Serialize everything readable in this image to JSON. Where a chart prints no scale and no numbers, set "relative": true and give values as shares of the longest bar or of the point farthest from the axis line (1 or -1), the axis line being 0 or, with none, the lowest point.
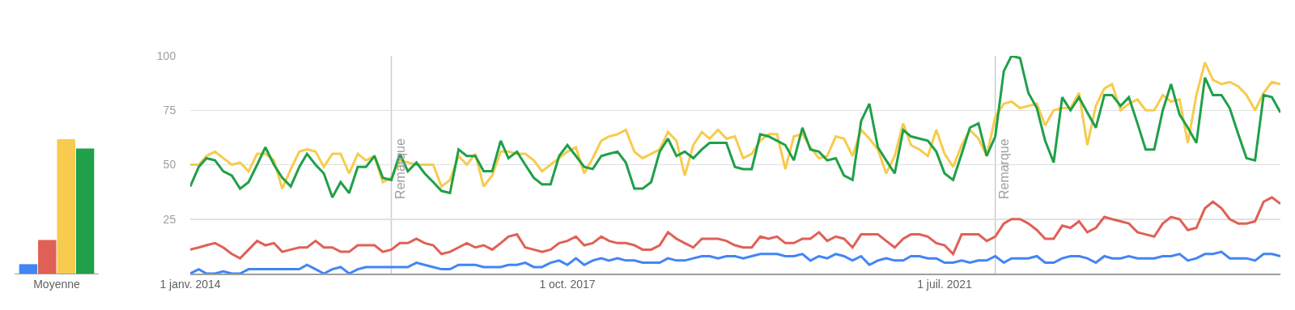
{
  "chart_data": [
    {
      "type": "bar",
      "relative": true,
      "categories": [
        "Moyenne"
      ],
      "series": [
        {
          "color": "#4285f4",
          "values": [
            0.07
          ]
        },
        {
          "color": "#e06055",
          "values": [
            0.25
          ]
        },
        {
          "color": "#f7cb4d",
          "values": [
            1
          ]
        },
        {
          "color": "#1fa049",
          "values": [
            0.93
          ]
        }
      ]
    },
    {
      "type": "line",
      "grid": "y",
      "xlim": [
        "2014-01-01",
        "2024-11-01"
      ],
      "ylim": [
        0,
        100
      ],
      "yticks": [
        25,
        50,
        75,
        100
      ],
      "xticks": [
        {
          "value": "2014-01-01",
          "label": "1 janv. 2014"
        },
        {
          "value": "2017-10-01",
          "label": "1 oct. 2017"
        },
        {
          "value": "2021-07-01",
          "label": "1 juil. 2021"
        }
      ],
      "ref_lines": [
        {
          "axis": "x",
          "value": "2016-01",
          "label": "Remarque",
          "color": "#cccccc"
        },
        {
          "axis": "x",
          "value": "2022-01",
          "label": "Remarque",
          "color": "#cccccc"
        }
      ],
      "x": [
        "2014-01",
        "2014-02",
        "2014-03",
        "2014-04",
        "2014-05",
        "2014-06",
        "2014-07",
        "2014-08",
        "2014-09",
        "2014-10",
        "2014-11",
        "2014-12",
        "2015-01",
        "2015-02",
        "2015-03",
        "2015-04",
        "2015-05",
        "2015-06",
        "2015-07",
        "2015-08",
        "2015-09",
        "2015-10",
        "2015-11",
        "2015-12",
        "2016-01",
        "2016-02",
        "2016-03",
        "2016-04",
        "2016-05",
        "2016-06",
        "2016-07",
        "2016-08",
        "2016-09",
        "2016-10",
        "2016-11",
        "2016-12",
        "2017-01",
        "2017-02",
        "2017-03",
        "2017-04",
        "2017-05",
        "2017-06",
        "2017-07",
        "2017-08",
        "2017-09",
        "2017-10",
        "2017-11",
        "2017-12",
        "2018-01",
        "2018-02",
        "2018-03",
        "2018-04",
        "2018-05",
        "2018-06",
        "2018-07",
        "2018-08",
        "2018-09",
        "2018-10",
        "2018-11",
        "2018-12",
        "2019-01",
        "2019-02",
        "2019-03",
        "2019-04",
        "2019-05",
        "2019-06",
        "2019-07",
        "2019-08",
        "2019-09",
        "2019-10",
        "2019-11",
        "2019-12",
        "2020-01",
        "2020-02",
        "2020-03",
        "2020-04",
        "2020-05",
        "2020-06",
        "2020-07",
        "2020-08",
        "2020-09",
        "2020-10",
        "2020-11",
        "2020-12",
        "2021-01",
        "2021-02",
        "2021-03",
        "2021-04",
        "2021-05",
        "2021-06",
        "2021-07",
        "2021-08",
        "2021-09",
        "2021-10",
        "2021-11",
        "2021-12",
        "2022-01",
        "2022-02",
        "2022-03",
        "2022-04",
        "2022-05",
        "2022-06",
        "2022-07",
        "2022-08",
        "2022-09",
        "2022-10",
        "2022-11",
        "2022-12",
        "2023-01",
        "2023-02",
        "2023-03",
        "2023-04",
        "2023-05",
        "2023-06",
        "2023-07",
        "2023-08",
        "2023-09",
        "2023-10",
        "2023-11",
        "2023-12",
        "2024-01",
        "2024-02",
        "2024-03",
        "2024-04",
        "2024-05",
        "2024-06",
        "2024-07",
        "2024-08",
        "2024-09",
        "2024-10",
        "2024-11"
      ],
      "series": [
        {
          "color": "#4285f4",
          "values": [
            0,
            2,
            0,
            0,
            1,
            0,
            0,
            2,
            2,
            2,
            2,
            2,
            2,
            2,
            4,
            2,
            0,
            2,
            3,
            0,
            2,
            3,
            3,
            3,
            3,
            3,
            3,
            5,
            4,
            3,
            2,
            2,
            4,
            4,
            4,
            3,
            3,
            3,
            4,
            4,
            5,
            3,
            3,
            5,
            6,
            4,
            7,
            4,
            6,
            7,
            6,
            7,
            6,
            6,
            5,
            5,
            5,
            7,
            6,
            6,
            7,
            8,
            8,
            7,
            8,
            8,
            7,
            8,
            9,
            9,
            9,
            8,
            8,
            9,
            6,
            8,
            7,
            9,
            8,
            6,
            8,
            4,
            6,
            7,
            6,
            6,
            8,
            8,
            7,
            7,
            5,
            5,
            6,
            5,
            6,
            6,
            8,
            5,
            7,
            7,
            7,
            8,
            5,
            5,
            7,
            8,
            8,
            7,
            5,
            8,
            7,
            7,
            8,
            7,
            7,
            7,
            8,
            8,
            9,
            6,
            7,
            9,
            9,
            10,
            7,
            7,
            7,
            6,
            9,
            9,
            8
          ]
        },
        {
          "color": "#e06055",
          "values": [
            11,
            12,
            13,
            14,
            12,
            9,
            7,
            11,
            15,
            13,
            14,
            10,
            11,
            12,
            12,
            15,
            12,
            12,
            10,
            10,
            13,
            13,
            13,
            10,
            11,
            14,
            14,
            16,
            14,
            13,
            9,
            10,
            12,
            14,
            12,
            13,
            11,
            14,
            17,
            18,
            12,
            11,
            10,
            11,
            14,
            15,
            17,
            13,
            14,
            17,
            15,
            14,
            14,
            13,
            11,
            11,
            13,
            19,
            16,
            14,
            12,
            16,
            16,
            16,
            15,
            13,
            12,
            12,
            17,
            16,
            17,
            14,
            14,
            16,
            16,
            19,
            15,
            17,
            16,
            12,
            18,
            18,
            18,
            15,
            12,
            16,
            18,
            18,
            17,
            14,
            13,
            9,
            18,
            18,
            18,
            15,
            17,
            23,
            25,
            25,
            23,
            20,
            16,
            16,
            22,
            21,
            24,
            19,
            21,
            26,
            25,
            24,
            23,
            19,
            18,
            17,
            23,
            26,
            25,
            20,
            21,
            30,
            33,
            30,
            25,
            23,
            23,
            24,
            33,
            35,
            32
          ]
        },
        {
          "color": "#f7cb4d",
          "values": [
            50,
            50,
            54,
            56,
            53,
            50,
            51,
            47,
            55,
            55,
            52,
            39,
            48,
            56,
            57,
            56,
            49,
            55,
            55,
            46,
            55,
            52,
            54,
            42,
            44,
            52,
            51,
            50,
            50,
            50,
            40,
            43,
            54,
            50,
            55,
            40,
            45,
            56,
            56,
            55,
            55,
            52,
            47,
            50,
            53,
            56,
            58,
            46,
            53,
            61,
            63,
            64,
            66,
            56,
            53,
            55,
            57,
            65,
            61,
            45,
            59,
            65,
            62,
            66,
            62,
            63,
            53,
            55,
            61,
            64,
            64,
            48,
            63,
            64,
            58,
            53,
            54,
            63,
            62,
            54,
            66,
            62,
            57,
            46,
            54,
            69,
            59,
            57,
            54,
            66,
            55,
            49,
            59,
            66,
            62,
            54,
            72,
            78,
            79,
            76,
            77,
            78,
            68,
            75,
            76,
            76,
            83,
            59,
            77,
            85,
            87,
            75,
            78,
            80,
            75,
            75,
            82,
            79,
            80,
            60,
            82,
            97,
            89,
            87,
            88,
            86,
            82,
            75,
            83,
            88,
            87
          ]
        },
        {
          "color": "#1fa049",
          "values": [
            40,
            49,
            53,
            52,
            47,
            45,
            39,
            42,
            50,
            58,
            50,
            44,
            40,
            49,
            55,
            50,
            46,
            35,
            42,
            37,
            49,
            49,
            54,
            44,
            43,
            55,
            47,
            51,
            46,
            42,
            38,
            37,
            57,
            54,
            54,
            47,
            47,
            61,
            53,
            56,
            50,
            44,
            41,
            41,
            54,
            59,
            54,
            49,
            48,
            54,
            55,
            56,
            51,
            39,
            39,
            42,
            56,
            62,
            54,
            56,
            53,
            57,
            60,
            60,
            60,
            49,
            48,
            48,
            64,
            63,
            61,
            59,
            52,
            67,
            57,
            56,
            52,
            53,
            45,
            43,
            70,
            78,
            58,
            52,
            46,
            66,
            63,
            62,
            61,
            56,
            46,
            43,
            55,
            67,
            69,
            54,
            63,
            93,
            100,
            99,
            83,
            76,
            61,
            51,
            81,
            75,
            81,
            74,
            67,
            82,
            82,
            77,
            81,
            69,
            57,
            57,
            75,
            87,
            73,
            67,
            60,
            90,
            82,
            82,
            76,
            64,
            53,
            52,
            82,
            81,
            74
          ]
        }
      ]
    }
  ]
}
